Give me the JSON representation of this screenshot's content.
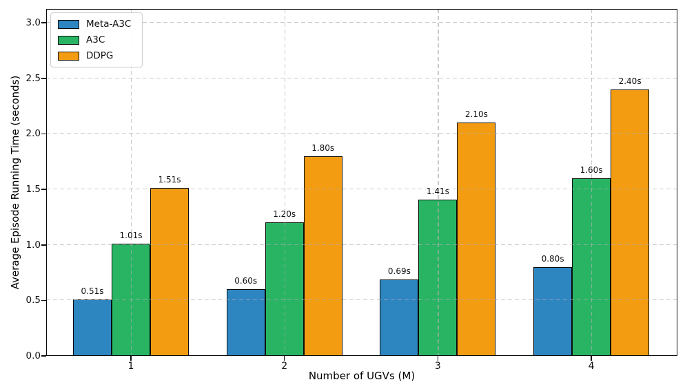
{
  "chart_data": {
    "type": "bar",
    "title": "",
    "xlabel": "Number of UGVs (M)",
    "ylabel": "Average Episode Running Time (seconds)",
    "categories": [
      "1",
      "2",
      "3",
      "4"
    ],
    "series": [
      {
        "name": "Meta-A3C",
        "color": "#2E86C1",
        "values": [
          0.51,
          0.6,
          0.69,
          0.8
        ],
        "labels": [
          "0.51s",
          "0.60s",
          "0.69s",
          "0.80s"
        ]
      },
      {
        "name": "A3C",
        "color": "#28B463",
        "values": [
          1.01,
          1.2,
          1.41,
          1.6
        ],
        "labels": [
          "1.01s",
          "1.20s",
          "1.41s",
          "1.60s"
        ]
      },
      {
        "name": "DDPG",
        "color": "#F39C12",
        "values": [
          1.51,
          1.8,
          2.1,
          2.4
        ],
        "labels": [
          "1.51s",
          "1.80s",
          "2.10s",
          "2.40s"
        ]
      }
    ],
    "yticks": [
      0.0,
      0.5,
      1.0,
      1.5,
      2.0,
      2.5,
      3.0
    ],
    "ytick_labels": [
      "0.0",
      "0.5",
      "1.0",
      "1.5",
      "2.0",
      "2.5",
      "3.0"
    ],
    "ylim": [
      0,
      3.125
    ],
    "grid": true,
    "grid_style": "dashed",
    "legend_position": "upper-left",
    "colors": {
      "bar_edge": "#0c0c0c",
      "grid": "#aeaeae",
      "text": "#111111",
      "background": "#ffffff"
    }
  }
}
